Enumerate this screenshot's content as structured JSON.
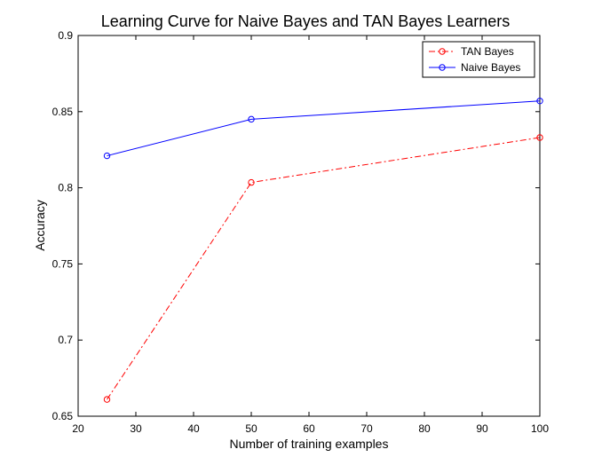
{
  "chart_data": {
    "type": "line",
    "title": "Learning Curve for Naive Bayes and TAN Bayes Learners",
    "xlabel": "Number of training examples",
    "ylabel": "Accuracy",
    "xlim": [
      20,
      100
    ],
    "ylim": [
      0.65,
      0.9
    ],
    "xticks": [
      20,
      30,
      40,
      50,
      60,
      70,
      80,
      90,
      100
    ],
    "yticks": [
      0.65,
      0.7,
      0.75,
      0.8,
      0.85,
      0.9
    ],
    "xtick_labels": [
      "20",
      "30",
      "40",
      "50",
      "60",
      "70",
      "80",
      "90",
      "100"
    ],
    "ytick_labels": [
      "0.65",
      "0.7",
      "0.75",
      "0.8",
      "0.85",
      "0.9"
    ],
    "grid": false,
    "legend_position": "top-right",
    "series": [
      {
        "name": "TAN Bayes",
        "color": "#ff0000",
        "line_style": "dash-dot",
        "marker": "circle",
        "x": [
          25,
          50,
          100
        ],
        "y": [
          0.661,
          0.8035,
          0.833
        ]
      },
      {
        "name": "Naive Bayes",
        "color": "#0000ff",
        "line_style": "solid",
        "marker": "circle",
        "x": [
          25,
          50,
          100
        ],
        "y": [
          0.821,
          0.845,
          0.857
        ]
      }
    ]
  }
}
